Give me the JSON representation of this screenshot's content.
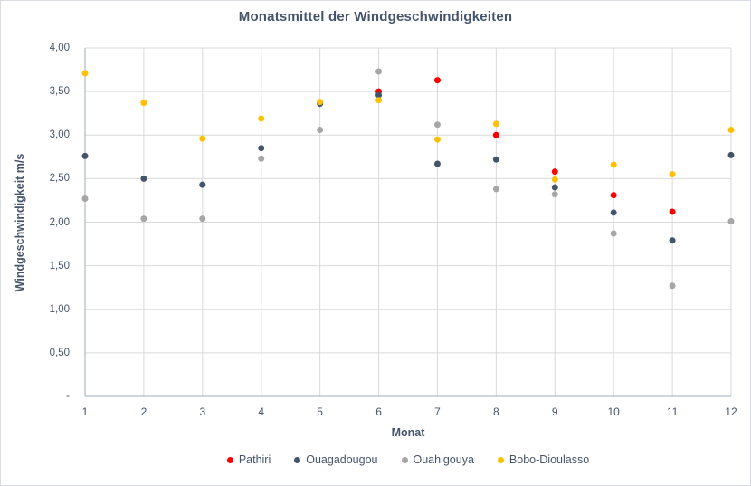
{
  "window": {
    "background": "#FFFFFF",
    "border_color": "#D9DDE3"
  },
  "styles": {
    "text_color": "#44546A",
    "grid_color": "#D9D9D9",
    "axis_color": "#A0A9B8"
  },
  "chart_data": {
    "type": "scatter",
    "title": "Monatsmittel der Windgeschwindigkeiten",
    "xlabel": "Monat",
    "ylabel": "Windgeschwindigkeit m/s",
    "xlim": [
      1,
      12
    ],
    "ylim": [
      0,
      4
    ],
    "grid": true,
    "legend_position": "bottom",
    "x": [
      1,
      2,
      3,
      4,
      5,
      6,
      7,
      8,
      9,
      10,
      11,
      12
    ],
    "xtick_labels": [
      "1",
      "2",
      "3",
      "4",
      "5",
      "6",
      "7",
      "8",
      "9",
      "10",
      "11",
      "12"
    ],
    "yticks": [
      {
        "value": 4.0,
        "label": "4,00"
      },
      {
        "value": 3.5,
        "label": "3,50"
      },
      {
        "value": 3.0,
        "label": "3,00"
      },
      {
        "value": 2.5,
        "label": "2,50"
      },
      {
        "value": 2.0,
        "label": "2,00"
      },
      {
        "value": 1.5,
        "label": "1,50"
      },
      {
        "value": 1.0,
        "label": "1,00"
      },
      {
        "value": 0.5,
        "label": "0,50"
      },
      {
        "value": 0.0,
        "label": "-"
      }
    ],
    "series": [
      {
        "name": "Pathiri",
        "color": "#FF0000",
        "values": [
          null,
          null,
          null,
          null,
          null,
          3.5,
          3.63,
          3.0,
          2.58,
          2.31,
          2.12,
          null
        ]
      },
      {
        "name": "Ouagadougou",
        "color": "#44546A",
        "values": [
          2.76,
          2.5,
          2.43,
          2.85,
          3.36,
          3.46,
          2.67,
          2.72,
          2.4,
          2.11,
          1.79,
          2.77
        ]
      },
      {
        "name": "Ouahigouya",
        "color": "#A6A6A6",
        "values": [
          2.27,
          2.04,
          2.04,
          2.73,
          3.06,
          3.73,
          3.12,
          2.38,
          2.32,
          1.87,
          1.27,
          2.01
        ]
      },
      {
        "name": "Bobo-Dioulasso",
        "color": "#FFC000",
        "values": [
          3.71,
          3.37,
          2.96,
          3.19,
          3.38,
          3.4,
          2.95,
          3.13,
          2.49,
          2.66,
          2.55,
          3.06
        ]
      }
    ]
  }
}
